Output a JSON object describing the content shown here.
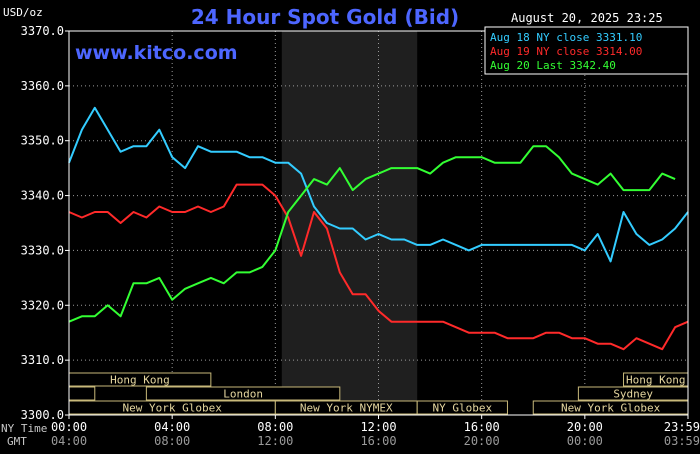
{
  "chart_data": {
    "type": "line",
    "title": "24 Hour Spot Gold (Bid)",
    "unit_label": "USD/oz",
    "timestamp": "August 20, 2025 23:25",
    "watermark": "www.kitco.com",
    "ylim": [
      3300,
      3370
    ],
    "y_ticks": [
      "3370.0",
      "3360.0",
      "3350.0",
      "3340.0",
      "3330.0",
      "3320.0",
      "3310.0",
      "3300.0"
    ],
    "x_ticks_ny": [
      "00:00",
      "04:00",
      "08:00",
      "12:00",
      "16:00",
      "20:00",
      "23:59"
    ],
    "x_ticks_gmt": [
      "04:00",
      "08:00",
      "12:00",
      "16:00",
      "20:00",
      "00:00",
      "03:59"
    ],
    "ny_time_label": "NY Time",
    "gmt_label": "GMT",
    "legend": [
      "Aug 18 NY close 3331.10",
      "Aug 19 NY close 3314.00",
      "Aug 20 Last 3342.40"
    ],
    "series": [
      {
        "name": "Aug 18 NY close 3331.10",
        "color": "#33ccff",
        "x": [
          0,
          0.5,
          1,
          1.5,
          2,
          2.5,
          3,
          3.5,
          4,
          4.5,
          5,
          5.5,
          6,
          6.5,
          7,
          7.5,
          8,
          8.5,
          9,
          9.5,
          10,
          10.5,
          11,
          11.5,
          12,
          12.5,
          13,
          13.5,
          14,
          14.5,
          15,
          15.5,
          16,
          16.5,
          17,
          17.5,
          18,
          18.5,
          19,
          19.5,
          20,
          20.5,
          21,
          21.5,
          22,
          22.5,
          23,
          23.5,
          24
        ],
        "values": [
          3346,
          3352,
          3356,
          3352,
          3348,
          3349,
          3349,
          3352,
          3347,
          3345,
          3349,
          3348,
          3348,
          3348,
          3347,
          3347,
          3346,
          3346,
          3344,
          3338,
          3335,
          3334,
          3334,
          3332,
          3333,
          3332,
          3332,
          3331,
          3331,
          3332,
          3331,
          3330,
          3331,
          3331,
          3331,
          3331,
          3331,
          3331,
          3331,
          3331,
          3330,
          3333,
          3328,
          3337,
          3333,
          3331,
          3332,
          3334,
          3337
        ]
      },
      {
        "name": "Aug 19 NY close 3314.00",
        "color": "#ff2a2a",
        "x": [
          0,
          0.5,
          1,
          1.5,
          2,
          2.5,
          3,
          3.5,
          4,
          4.5,
          5,
          5.5,
          6,
          6.5,
          7,
          7.5,
          8,
          8.5,
          9,
          9.5,
          10,
          10.5,
          11,
          11.5,
          12,
          12.5,
          13,
          13.5,
          14,
          14.5,
          15,
          15.5,
          16,
          16.5,
          17,
          17.5,
          18,
          18.5,
          19,
          19.5,
          20,
          20.5,
          21,
          21.5,
          22,
          22.5,
          23,
          23.5,
          24
        ],
        "values": [
          3337,
          3336,
          3337,
          3337,
          3335,
          3337,
          3336,
          3338,
          3337,
          3337,
          3338,
          3337,
          3338,
          3342,
          3342,
          3342,
          3340,
          3336,
          3329,
          3337,
          3334,
          3326,
          3322,
          3322,
          3319,
          3317,
          3317,
          3317,
          3317,
          3317,
          3316,
          3315,
          3315,
          3315,
          3314,
          3314,
          3314,
          3315,
          3315,
          3314,
          3314,
          3313,
          3313,
          3312,
          3314,
          3313,
          3312,
          3316,
          3317
        ]
      },
      {
        "name": "Aug 20 Last 3342.40",
        "color": "#33ff33",
        "x": [
          0,
          0.5,
          1,
          1.5,
          2,
          2.5,
          3,
          3.5,
          4,
          4.5,
          5,
          5.5,
          6,
          6.5,
          7,
          7.5,
          8,
          8.5,
          9,
          9.5,
          10,
          10.5,
          11,
          11.5,
          12,
          12.5,
          13,
          13.5,
          14,
          14.5,
          15,
          15.5,
          16,
          16.5,
          17,
          17.5,
          18,
          18.5,
          19,
          19.5,
          20,
          20.5,
          21,
          21.5,
          22,
          22.5,
          23,
          23.5
        ],
        "values": [
          3317,
          3318,
          3318,
          3320,
          3318,
          3324,
          3324,
          3325,
          3321,
          3323,
          3324,
          3325,
          3324,
          3326,
          3326,
          3327,
          3330,
          3337,
          3340,
          3343,
          3342,
          3345,
          3341,
          3343,
          3344,
          3345,
          3345,
          3345,
          3344,
          3346,
          3347,
          3347,
          3347,
          3346,
          3346,
          3346,
          3349,
          3349,
          3347,
          3344,
          3343,
          3342,
          3344,
          3341,
          3341,
          3341,
          3344,
          3343
        ]
      }
    ]
  },
  "sessions": {
    "row1": [
      {
        "label": "Hong Kong",
        "start": 0,
        "end": 5.5
      },
      {
        "label": "Hong Kong",
        "start": 21.5,
        "end": 24
      }
    ],
    "row2": [
      {
        "label": "",
        "start": 0,
        "end": 1
      },
      {
        "label": "London",
        "start": 3,
        "end": 10.5
      },
      {
        "label": "Sydney",
        "start": 19.75,
        "end": 24
      }
    ],
    "row3": [
      {
        "label": "New York Globex",
        "start": 0,
        "end": 8
      },
      {
        "label": "New York NYMEX",
        "start": 8,
        "end": 13.5
      },
      {
        "label": "NY Globex",
        "start": 13.5,
        "end": 17
      },
      {
        "label": "New York Globex",
        "start": 18,
        "end": 24
      }
    ]
  },
  "shaded_range": [
    8.25,
    13.5
  ]
}
